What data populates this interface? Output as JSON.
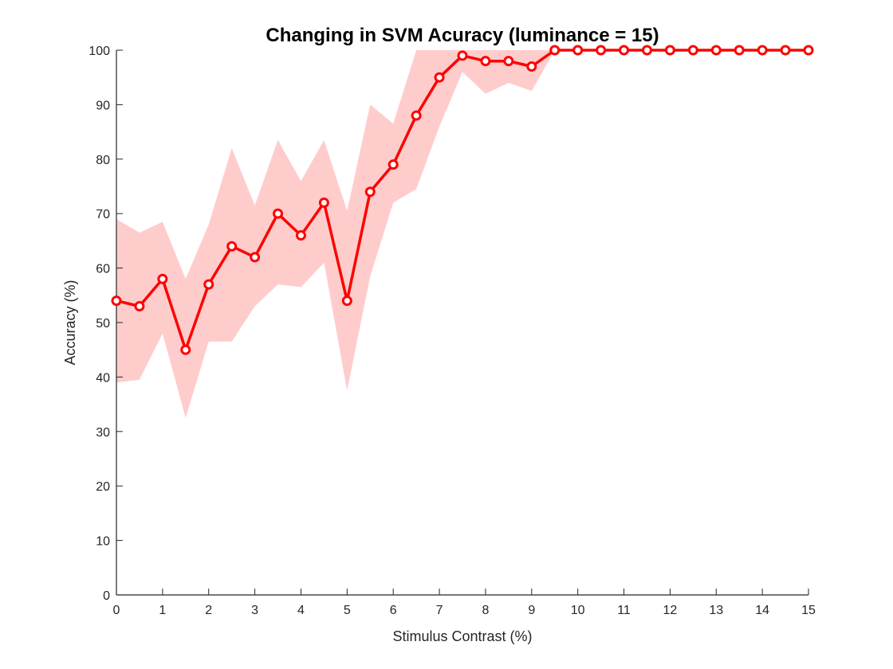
{
  "chart_data": {
    "type": "line",
    "title": "Changing in SVM Acuracy (luminance = 15)",
    "xlabel": "Stimulus Contrast (%)",
    "ylabel": "Accuracy (%)",
    "xlim": [
      0,
      15
    ],
    "ylim": [
      0,
      100
    ],
    "xticks": [
      "0",
      "1",
      "2",
      "3",
      "4",
      "5",
      "6",
      "7",
      "8",
      "9",
      "10",
      "11",
      "12",
      "13",
      "14",
      "15"
    ],
    "yticks": [
      "0",
      "10",
      "20",
      "30",
      "40",
      "50",
      "60",
      "70",
      "80",
      "90",
      "100"
    ],
    "grid": false,
    "legend": null,
    "series": [
      {
        "x": [
          0,
          0.5,
          1,
          1.5,
          2,
          2.5,
          3,
          3.5,
          4,
          4.5,
          5,
          5.5,
          6,
          6.5,
          7,
          7.5,
          8,
          8.5,
          9,
          9.5,
          10,
          10.5,
          11,
          11.5,
          12,
          12.5,
          13,
          13.5,
          14,
          14.5,
          15
        ],
        "y": [
          54,
          53,
          58,
          45,
          57,
          64,
          62,
          70,
          66,
          72,
          54,
          74,
          79,
          88,
          95,
          99,
          98,
          98,
          97,
          100,
          100,
          100,
          100,
          100,
          100,
          100,
          100,
          100,
          100,
          100,
          100
        ],
        "upper": [
          69,
          66.5,
          68.5,
          58,
          68,
          82,
          71.5,
          83.5,
          76,
          83.5,
          70.5,
          90,
          86.5,
          100,
          100,
          100,
          100,
          100,
          100,
          100,
          100,
          100,
          100,
          100,
          100,
          100,
          100,
          100,
          100,
          100,
          100
        ],
        "lower": [
          39,
          39.5,
          48,
          32.5,
          46.5,
          46.5,
          53,
          57,
          56.5,
          61,
          37.5,
          58.5,
          72,
          74.5,
          86,
          96,
          92,
          94,
          92.5,
          100,
          100,
          100,
          100,
          100,
          100,
          100,
          100,
          100,
          100,
          100,
          100
        ]
      }
    ],
    "colors": {
      "line": "#ff0000",
      "band": "#ffcccc",
      "axis": "#262626"
    }
  }
}
